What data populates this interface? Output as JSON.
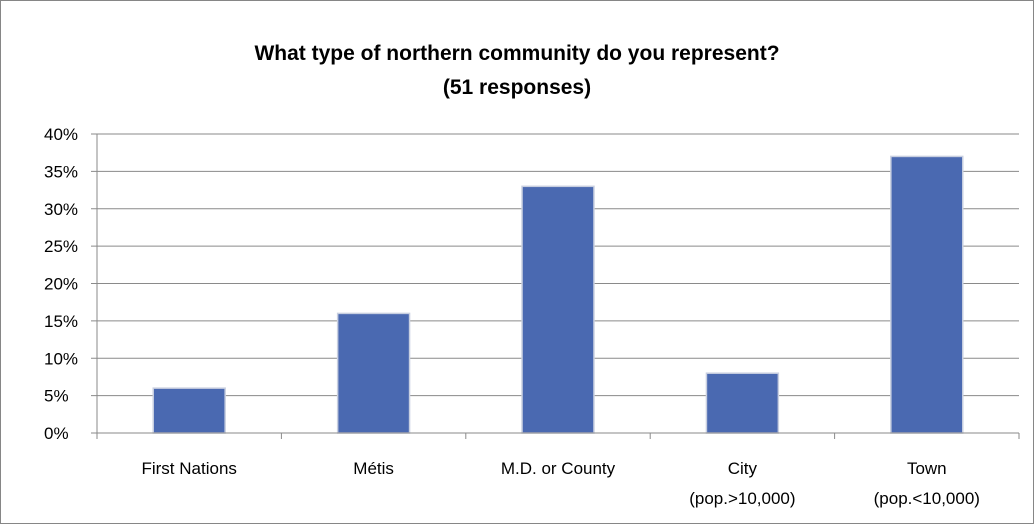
{
  "chart_data": {
    "type": "bar",
    "title": "What type of northern community do you represent?",
    "subtitle": "(51 responses)",
    "categories": [
      [
        "First Nations"
      ],
      [
        "Métis"
      ],
      [
        "M.D. or County"
      ],
      [
        "City",
        "(pop.>10,000)"
      ],
      [
        "Town",
        "(pop.<10,000)"
      ]
    ],
    "values": [
      6,
      16,
      33,
      8,
      37
    ],
    "unit": "%",
    "ylim": [
      0,
      40
    ],
    "ytick_step": 5,
    "ytick_labels": [
      "0%",
      "5%",
      "10%",
      "15%",
      "20%",
      "25%",
      "30%",
      "35%",
      "40%"
    ],
    "xlabel": "",
    "ylabel": "",
    "grid": true,
    "legend": "none",
    "bar_color": "#4a69b1",
    "bar_edge_color": "#c8cfe0",
    "grid_color": "#8a8a8a"
  }
}
